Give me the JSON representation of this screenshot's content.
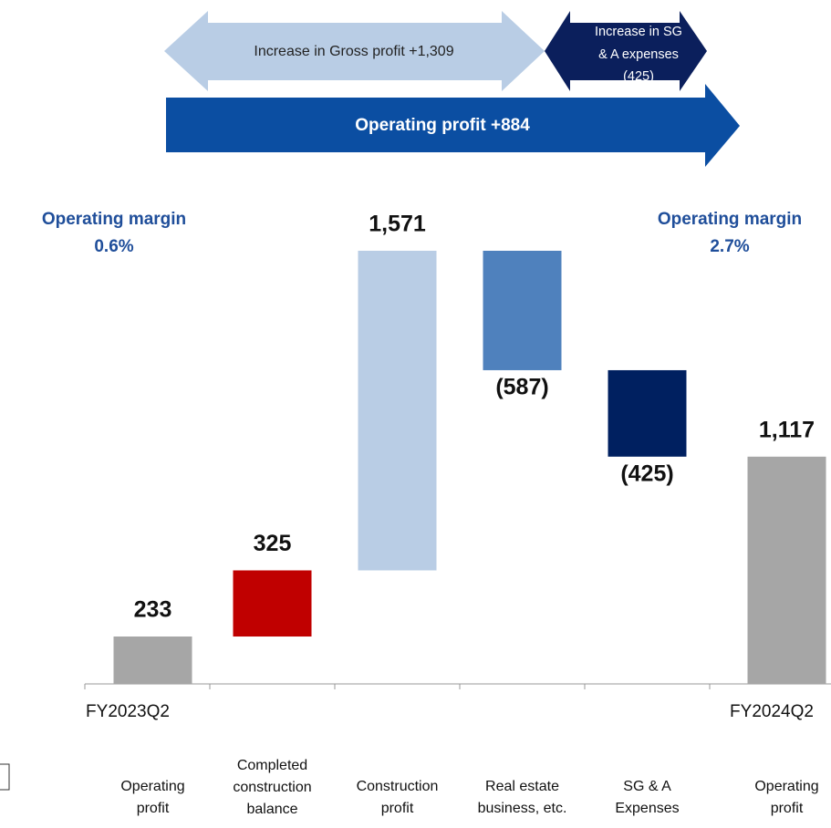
{
  "chart_data": {
    "type": "waterfall",
    "categories": [
      [
        "Operating",
        "profit"
      ],
      [
        "Completed",
        "construction",
        "balance"
      ],
      [
        "Construction",
        "profit"
      ],
      [
        "Real estate",
        "business, etc."
      ],
      [
        "SG & A",
        "Expenses"
      ],
      [
        "Operating",
        "profit"
      ]
    ],
    "values": [
      233,
      325,
      1571,
      -587,
      -425,
      1117
    ],
    "value_labels": [
      "233",
      "325",
      "1,571",
      "(587)",
      "(425)",
      "1,117"
    ],
    "measures": [
      "total",
      "relative",
      "relative",
      "relative",
      "relative",
      "total"
    ],
    "colors": [
      "#a6a6a6",
      "#c00000",
      "#b9cde5",
      "#4f81bd",
      "#002060",
      "#a6a6a6"
    ],
    "start_label": "FY2023Q2",
    "end_label": "FY2024Q2",
    "annotations": {
      "margin_start": [
        "Operating margin",
        "0.6%"
      ],
      "margin_end": [
        "Operating margin",
        "2.7%"
      ],
      "gross_profit": "Increase in Gross profit +1,309",
      "sga": [
        "Increase in SG",
        "& A expenses",
        "(425)"
      ],
      "operating_profit": "Operating profit +884"
    }
  }
}
